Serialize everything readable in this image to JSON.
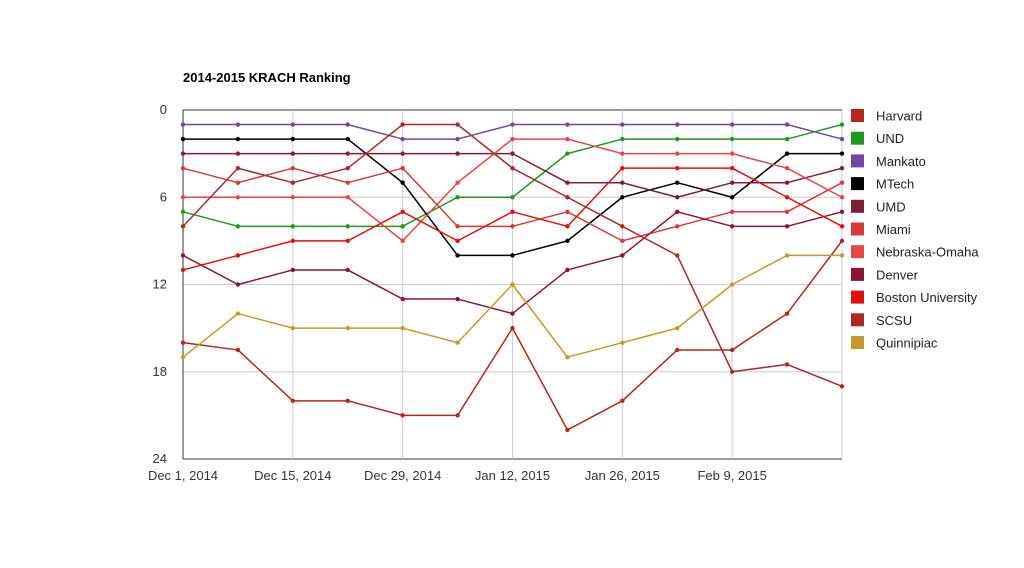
{
  "chart_data": {
    "type": "line",
    "title": "2014-2015 KRACH Ranking",
    "xlabel": "",
    "ylabel": "",
    "ylim": [
      0,
      24
    ],
    "y_inverted": true,
    "y_ticks": [
      "0",
      "6",
      "12",
      "18",
      "24"
    ],
    "x_tick_labels": [
      "Dec 1, 2014",
      "Dec 15, 2014",
      "Dec 29, 2014",
      "Jan 12, 2015",
      "Jan 26, 2015",
      "Feb 9, 2015"
    ],
    "x_tick_weeks": [
      0,
      2,
      4,
      6,
      8,
      10
    ],
    "x_weeks": [
      0,
      1,
      2,
      3,
      4,
      5,
      6,
      7,
      8,
      9,
      10,
      11,
      12
    ],
    "legend_position": "right",
    "series": [
      {
        "name": "Harvard",
        "color": "#b2281a",
        "values": [
          16,
          16.5,
          20,
          20,
          21,
          21,
          15,
          22,
          20,
          16.5,
          16.5,
          14,
          9
        ]
      },
      {
        "name": "UND",
        "color": "#1f9a1f",
        "values": [
          7,
          8,
          8,
          8,
          8,
          6,
          6,
          3,
          2,
          2,
          2,
          2,
          1
        ]
      },
      {
        "name": "Mankato",
        "color": "#6e4a9e",
        "values": [
          1,
          1,
          1,
          1,
          2,
          2,
          1,
          1,
          1,
          1,
          1,
          1,
          2
        ]
      },
      {
        "name": "MTech",
        "color": "#000000",
        "values": [
          2,
          2,
          2,
          2,
          5,
          10,
          10,
          9,
          6,
          5,
          6,
          3,
          3
        ]
      },
      {
        "name": "UMD",
        "color": "#7d1f35",
        "values": [
          3,
          3,
          3,
          3,
          3,
          3,
          3,
          5,
          5,
          6,
          5,
          5,
          4
        ]
      },
      {
        "name": "Miami",
        "color": "#d63a3a",
        "values": [
          4,
          5,
          4,
          5,
          4,
          8,
          8,
          7,
          9,
          8,
          7,
          7,
          5
        ]
      },
      {
        "name": "Nebraska-Omaha",
        "color": "#e34848",
        "values": [
          6,
          6,
          6,
          6,
          9,
          5,
          2,
          2,
          3,
          3,
          3,
          4,
          6
        ]
      },
      {
        "name": "Denver",
        "color": "#8c1434",
        "values": [
          10,
          12,
          11,
          11,
          13,
          13,
          14,
          11,
          10,
          7,
          8,
          8,
          7
        ]
      },
      {
        "name": "Boston University",
        "color": "#e01010",
        "values": [
          11,
          10,
          9,
          9,
          7,
          9,
          7,
          8,
          4,
          4,
          4,
          6,
          8
        ]
      },
      {
        "name": "SCSU",
        "color": "#aa2828",
        "values": [
          8,
          4,
          5,
          4,
          1,
          1,
          4,
          6,
          8,
          10,
          18,
          17.5,
          19
        ]
      },
      {
        "name": "Quinnipiac",
        "color": "#c49a2a",
        "values": [
          17,
          14,
          15,
          15,
          15,
          16,
          12,
          17,
          16,
          15,
          12,
          10,
          10
        ]
      }
    ]
  }
}
